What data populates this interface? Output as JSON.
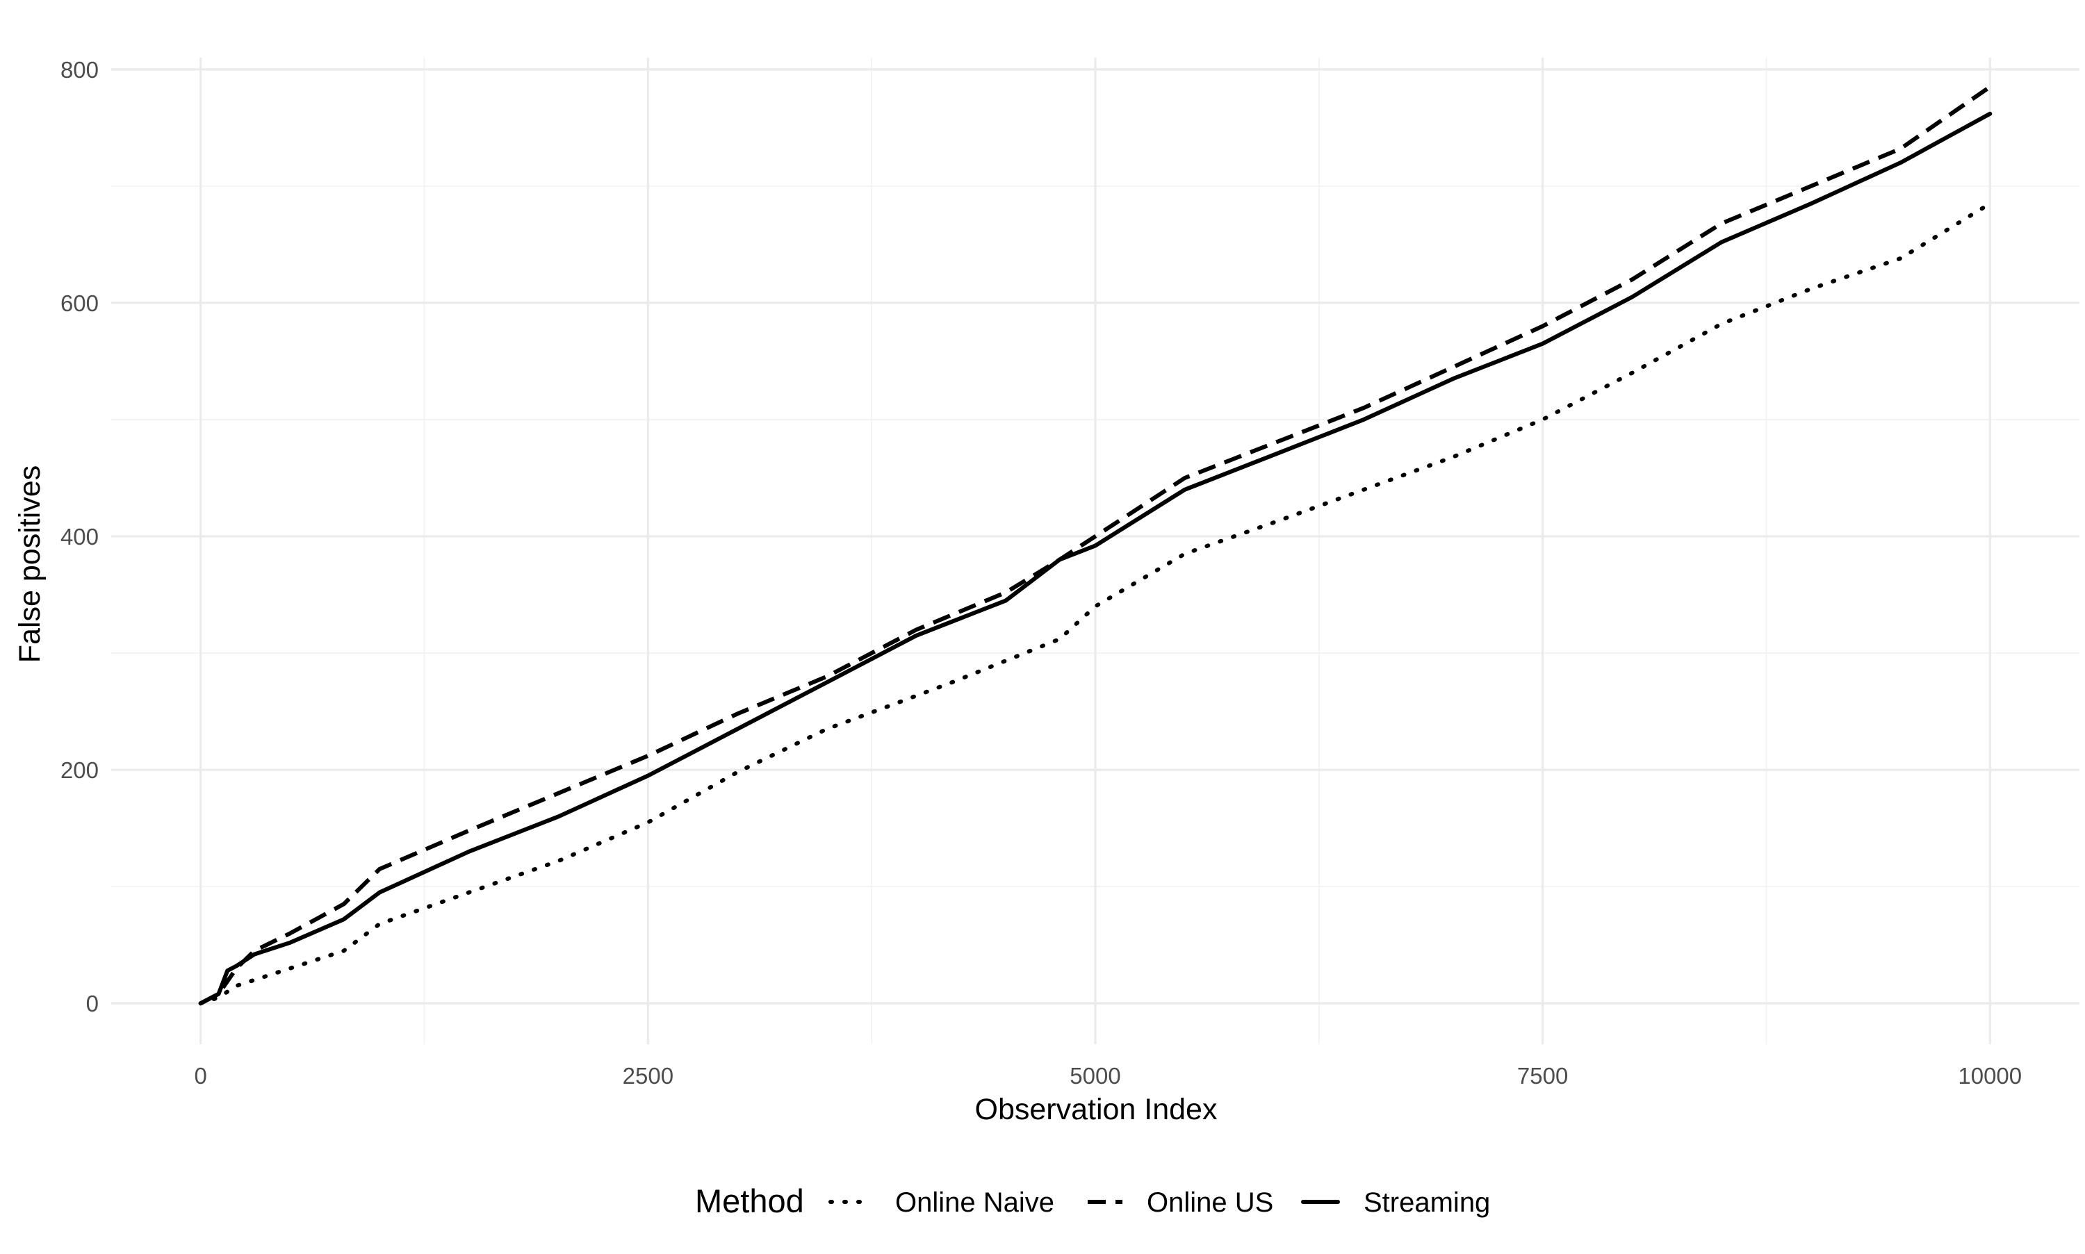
{
  "chart_data": {
    "type": "line",
    "xlabel": "Observation Index",
    "ylabel": "False positives",
    "xlim": [
      -500,
      10500
    ],
    "ylim": [
      -35,
      810
    ],
    "x_ticks": [
      0,
      2500,
      5000,
      7500,
      10000
    ],
    "x_tick_labels": [
      "0",
      "2500",
      "5000",
      "7500",
      "10000"
    ],
    "y_ticks": [
      0,
      200,
      400,
      600,
      800
    ],
    "y_tick_labels": [
      "0",
      "200",
      "400",
      "600",
      "800"
    ],
    "grid": true,
    "legend": {
      "title": "Method",
      "position": "bottom",
      "entries": [
        "Online Naive",
        "Online US",
        "Streaming"
      ]
    },
    "series": [
      {
        "name": "Online Naive",
        "linetype": "dotted",
        "color": "#000000",
        "x": [
          0,
          100,
          200,
          500,
          800,
          1000,
          1500,
          2000,
          2500,
          3000,
          3500,
          3800,
          4200,
          4800,
          5000,
          5500,
          6000,
          6500,
          7000,
          7500,
          8000,
          8500,
          9000,
          9500,
          10000
        ],
        "y": [
          0,
          5,
          15,
          30,
          45,
          68,
          95,
          122,
          155,
          198,
          235,
          252,
          275,
          312,
          340,
          385,
          412,
          440,
          468,
          500,
          540,
          582,
          612,
          638,
          685
        ]
      },
      {
        "name": "Online US",
        "linetype": "dashed",
        "color": "#000000",
        "x": [
          0,
          100,
          200,
          300,
          500,
          800,
          1000,
          1500,
          2000,
          2500,
          3000,
          3500,
          4000,
          4500,
          4800,
          5000,
          5500,
          6000,
          6500,
          7000,
          7500,
          8000,
          8500,
          9000,
          9500,
          10000
        ],
        "y": [
          0,
          8,
          30,
          45,
          60,
          85,
          115,
          148,
          180,
          212,
          248,
          280,
          320,
          352,
          380,
          400,
          450,
          480,
          510,
          545,
          580,
          620,
          668,
          700,
          732,
          785
        ]
      },
      {
        "name": "Streaming",
        "linetype": "solid",
        "color": "#000000",
        "x": [
          0,
          100,
          150,
          200,
          300,
          500,
          800,
          1000,
          1500,
          2000,
          2500,
          3000,
          3500,
          4000,
          4500,
          4800,
          5000,
          5500,
          6000,
          6500,
          7000,
          7500,
          8000,
          8500,
          9000,
          9500,
          10000
        ],
        "y": [
          0,
          8,
          28,
          32,
          42,
          52,
          72,
          95,
          130,
          160,
          195,
          235,
          275,
          315,
          345,
          380,
          392,
          440,
          470,
          500,
          535,
          565,
          605,
          652,
          685,
          720,
          762
        ]
      }
    ]
  }
}
